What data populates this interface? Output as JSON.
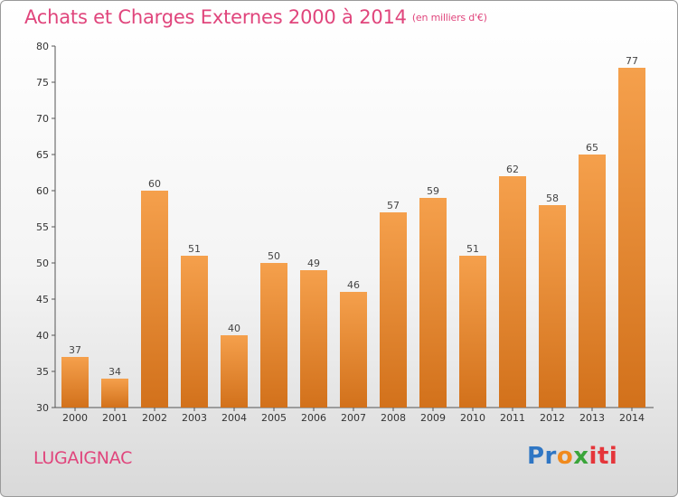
{
  "header": {
    "title": "Achats et Charges Externes 2000 à 2014",
    "subtitle": "(en milliers d'€)"
  },
  "commune": "LUGAIGNAC",
  "logo": {
    "p1": "Pr",
    "p2": "o",
    "p3": "x",
    "p4": "iti"
  },
  "colors": {
    "bar_top": "#f5a04c",
    "bar_bottom": "#d2711b",
    "title": "#e0457c"
  },
  "chart_data": {
    "type": "bar",
    "title": "Achats et Charges Externes 2000 à 2014",
    "subtitle": "(en milliers d'€)",
    "categories": [
      "2000",
      "2001",
      "2002",
      "2003",
      "2004",
      "2005",
      "2006",
      "2007",
      "2008",
      "2009",
      "2010",
      "2011",
      "2012",
      "2013",
      "2014"
    ],
    "values": [
      37,
      34,
      60,
      51,
      40,
      50,
      49,
      46,
      57,
      59,
      51,
      62,
      58,
      65,
      77
    ],
    "ylim": [
      30,
      80
    ],
    "yticks": [
      30,
      35,
      40,
      45,
      50,
      55,
      60,
      65,
      70,
      75,
      80
    ],
    "grid": false,
    "xlabel": "",
    "ylabel": ""
  }
}
